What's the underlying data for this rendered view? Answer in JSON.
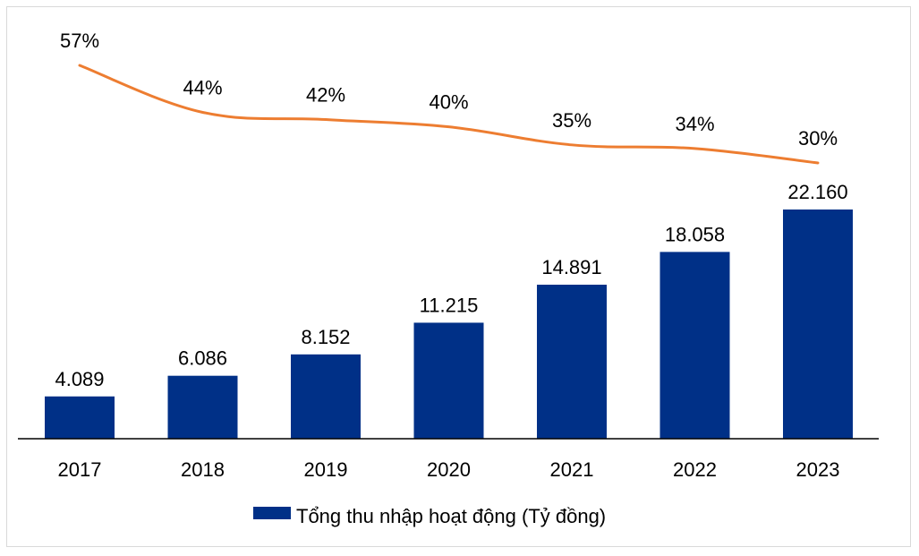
{
  "chart_data": {
    "type": "bar",
    "categories": [
      "2017",
      "2018",
      "2019",
      "2020",
      "2021",
      "2022",
      "2023"
    ],
    "series": [
      {
        "name": "Tổng thu nhập hoạt động (Tỷ đồng)",
        "type": "bar",
        "values": [
          4089,
          6086,
          8152,
          11215,
          14891,
          18058,
          22160
        ],
        "labels": [
          "4.089",
          "6.086",
          "8.152",
          "11.215",
          "14.891",
          "18.058",
          "22.160"
        ],
        "color": "#003087"
      },
      {
        "type": "line",
        "values": [
          57,
          44,
          42,
          40,
          35,
          34,
          30
        ],
        "labels": [
          "57%",
          "44%",
          "42%",
          "40%",
          "35%",
          "34%",
          "30%"
        ],
        "color": "#ED7D31"
      }
    ],
    "legend": {
      "position": "bottom",
      "entries": [
        "Tổng thu nhập hoạt động (Tỷ đồng)"
      ]
    },
    "title": "",
    "xlabel": "",
    "ylabel": "",
    "grid": false,
    "axis_line_color": "#000000"
  }
}
